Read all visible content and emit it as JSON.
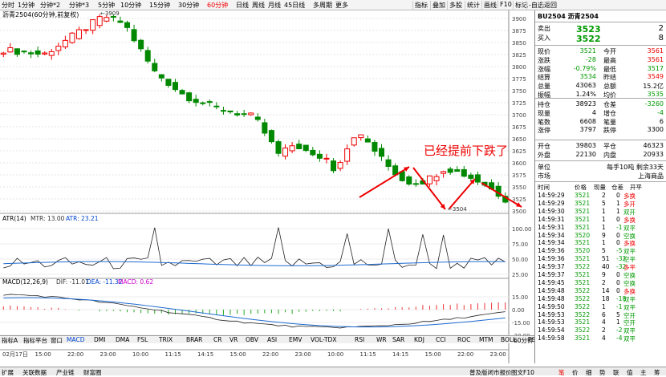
{
  "periods": [
    {
      "label": "分时",
      "active": false
    },
    {
      "label": "1分钟",
      "active": false
    },
    {
      "label": "分钟*2",
      "active": false
    },
    {
      "label": "分钟*3",
      "active": false
    },
    {
      "label": "5分钟",
      "active": false
    },
    {
      "label": "10分钟",
      "active": false
    },
    {
      "label": "15分钟",
      "active": false
    },
    {
      "label": "30分钟",
      "active": false
    },
    {
      "label": "60分钟",
      "active": true
    },
    {
      "label": "日线",
      "active": false
    },
    {
      "label": "周线",
      "active": false
    },
    {
      "label": "月线",
      "active": false
    },
    {
      "label": "45日线",
      "active": false
    },
    {
      "label": "多周期",
      "active": false
    },
    {
      "label": "更多",
      "active": false
    }
  ],
  "toolbar": [
    "指标",
    "叠加",
    "多股",
    "统计",
    "画线",
    "F10",
    "标记",
    "-自选",
    "返回"
  ],
  "chart": {
    "header": "沥青2504(60分钟,前复权)",
    "annotation": "已经提前下跌了",
    "high_label": "3909",
    "low_label": "3504"
  },
  "chart_data": {
    "type": "candlestick",
    "y_ticks": [
      3900,
      3875,
      3850,
      3825,
      3800,
      3775,
      3750,
      3725,
      3700,
      3675,
      3650,
      3625,
      3600,
      3575,
      3550,
      3525,
      3500
    ],
    "x_labels": [
      "02月17日",
      "15:00",
      "22:00",
      "23:00",
      "10:00",
      "11:15",
      "14:15",
      "15:00",
      "22:00",
      "23:00",
      "10:00",
      "11:15",
      "14:15",
      "15:00",
      "22:00",
      "23:00"
    ],
    "atr": {
      "label": "ATR(14)",
      "mtr": "MTR: 13.00",
      "atr": "ATR: 23.21",
      "ticks": [
        "100.00",
        "75.00",
        "50.00",
        "25.00"
      ]
    },
    "macd": {
      "label": "MACD(12,26,9)",
      "dif": "DIF: -11.01",
      "dea": "DEA: -11.32",
      "macd": "MACD: 0.62",
      "ticks": [
        "15.00",
        "0.00",
        "-15.00",
        "-30.00"
      ]
    }
  },
  "panel": {
    "title": "BU2504 沥青2504",
    "sell": {
      "label": "卖出",
      "price": "3523",
      "vol": "2"
    },
    "buy": {
      "label": "买入",
      "price": "3522",
      "vol": "8"
    },
    "quote": [
      [
        "现价",
        "3521",
        "今开",
        "3561"
      ],
      [
        "涨跌",
        "-28",
        "最高",
        "3561"
      ],
      [
        "涨幅",
        "-0.79%",
        "最低",
        "3517"
      ],
      [
        "结算",
        "3534",
        "昨结",
        "3549"
      ],
      [
        "总量",
        "43063",
        "总额",
        "15.2亿"
      ],
      [
        "振幅",
        "1.24%",
        "均价",
        "3535"
      ]
    ],
    "quote2": [
      [
        "持仓",
        "38923",
        "仓差",
        "-3260"
      ],
      [
        "现量",
        "4",
        "增仓",
        "-4"
      ],
      [
        "笔数",
        "6608",
        "笔量",
        "6"
      ],
      [
        "涨停",
        "3797",
        "跌停",
        "3300"
      ]
    ],
    "quote3": [
      [
        "开仓",
        "39803",
        "平仓",
        "46323"
      ],
      [
        "外盘",
        "22130",
        "内盘",
        "20933"
      ]
    ],
    "unit": {
      "label": "单位",
      "value": "每手10吨 剩余33天"
    },
    "market": {
      "label": "市场",
      "value": "上海商品"
    },
    "tick_header": [
      "时间",
      "价格",
      "现量",
      "仓差",
      "开平"
    ],
    "ticks": [
      [
        "14:59:29",
        "3521",
        "2",
        "0",
        "多换"
      ],
      [
        "14:59:29",
        "3521",
        "5",
        "1",
        "多开"
      ],
      [
        "14:59:30",
        "3521",
        "1",
        "1",
        "双开"
      ],
      [
        "14:59:31",
        "3521",
        "1",
        "0",
        "多换"
      ],
      [
        "14:59:31",
        "3521",
        "1",
        "-1",
        "双平"
      ],
      [
        "14:59:34",
        "3520",
        "9",
        "0",
        "空换"
      ],
      [
        "14:59:34",
        "3521",
        "1",
        "0",
        "多换"
      ],
      [
        "14:59:36",
        "3520",
        "5",
        "-5",
        "双平"
      ],
      [
        "14:59:36",
        "3521",
        "51",
        "-32",
        "空平"
      ],
      [
        "14:59:37",
        "3522",
        "40",
        "-32",
        "多平"
      ],
      [
        "14:59:37",
        "3521",
        "9",
        "0",
        "空换"
      ],
      [
        "14:59:45",
        "3521",
        "2",
        "0",
        "空换"
      ],
      [
        "14:59:48",
        "3522",
        "14",
        "0",
        "多换"
      ],
      [
        "14:59:48",
        "3522",
        "18",
        "-18",
        "双平"
      ],
      [
        "14:59:50",
        "3522",
        "1",
        "-1",
        "双平"
      ],
      [
        "14:59:53",
        "3522",
        "6",
        "5",
        "空开"
      ],
      [
        "14:59:53",
        "3521",
        "4",
        "1",
        "空开"
      ],
      [
        "14:59:54",
        "3522",
        "2",
        "-2",
        "双平"
      ],
      [
        "14:59:58",
        "3521",
        "4",
        "-4",
        "双平"
      ]
    ]
  },
  "indicator_tabs": [
    "指标A",
    "指标平台",
    "窗口",
    "MACD",
    "DMI",
    "DMA",
    "FSL",
    "TRIX",
    "BRAR",
    "CR",
    "VR",
    "OBV",
    "ASI",
    "EMV",
    "VOL-TDX",
    "RSI",
    "WR",
    "SAR",
    "KDJ",
    "CCI",
    "ROC",
    "MTM",
    "BOLL",
    "PSY",
    "MCST",
    "更多",
    "设置"
  ],
  "bottom_tabs": [
    "扩展",
    "关联数据",
    "产业链",
    "财富圈"
  ],
  "bottom_right": "普及版闭市报价",
  "bottom_right2": "图文F10",
  "right_tabs": [
    "笔",
    "价",
    "细",
    "势",
    "联",
    "值",
    "主",
    "筹"
  ],
  "period_box": "60分钟"
}
